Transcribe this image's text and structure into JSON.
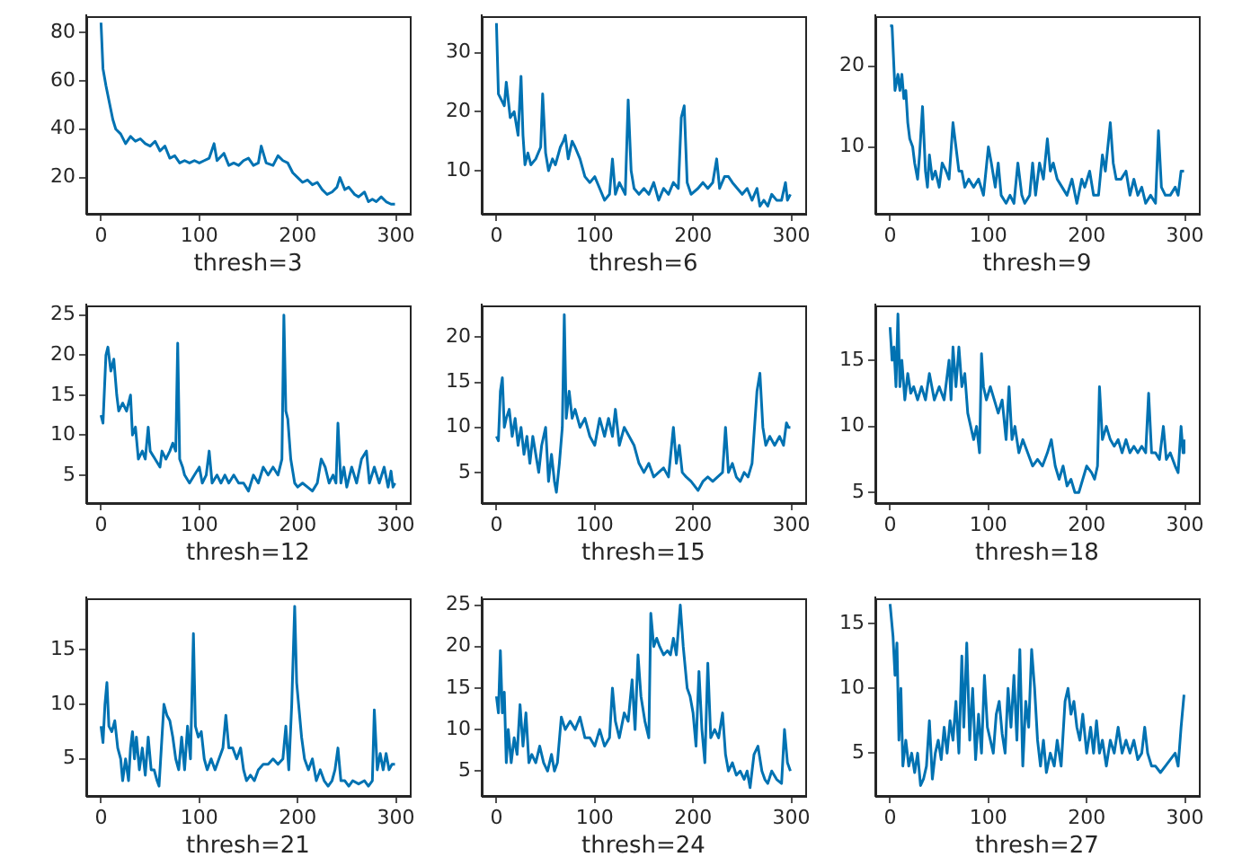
{
  "chart_data": [
    {
      "type": "line",
      "xlabel": "thresh=3",
      "color": "#0072b2",
      "xlim": [
        -15,
        314
      ],
      "xticks": [
        0,
        100,
        200,
        300
      ],
      "ylim": [
        5,
        87
      ],
      "yticks": [
        20,
        40,
        60,
        80
      ],
      "x": [
        0,
        2,
        5,
        8,
        12,
        15,
        20,
        25,
        30,
        35,
        40,
        45,
        50,
        55,
        60,
        65,
        70,
        75,
        80,
        85,
        90,
        95,
        100,
        105,
        110,
        115,
        118,
        125,
        130,
        135,
        140,
        145,
        150,
        155,
        160,
        163,
        168,
        175,
        180,
        185,
        190,
        195,
        200,
        205,
        210,
        215,
        220,
        225,
        230,
        235,
        240,
        243,
        248,
        252,
        258,
        262,
        268,
        272,
        276,
        280,
        285,
        290,
        295,
        299
      ],
      "values": [
        84,
        65,
        58,
        52,
        44,
        40,
        38,
        34,
        37,
        35,
        36,
        34,
        33,
        35,
        31,
        33,
        28,
        29,
        26,
        27,
        26,
        27,
        26,
        27,
        28,
        34,
        27,
        30,
        25,
        26,
        25,
        27,
        28,
        25,
        26,
        33,
        26,
        25,
        29,
        27,
        26,
        22,
        20,
        18,
        19,
        17,
        18,
        15,
        13,
        14,
        16,
        20,
        15,
        16,
        13,
        12,
        14,
        10,
        11,
        10,
        12,
        10,
        9,
        9
      ]
    },
    {
      "type": "line",
      "xlabel": "thresh=6",
      "color": "#0072b2",
      "xlim": [
        -15,
        314
      ],
      "xticks": [
        0,
        100,
        200,
        300
      ],
      "ylim": [
        2.7,
        36.3
      ],
      "yticks": [
        10,
        20,
        30
      ],
      "x": [
        0,
        2,
        5,
        8,
        10,
        12,
        14,
        18,
        22,
        25,
        27,
        29,
        32,
        35,
        40,
        45,
        47,
        50,
        53,
        57,
        60,
        65,
        68,
        70,
        73,
        77,
        80,
        85,
        90,
        95,
        100,
        105,
        110,
        115,
        118,
        121,
        125,
        128,
        131,
        134,
        137,
        140,
        145,
        150,
        155,
        160,
        165,
        170,
        175,
        180,
        185,
        188,
        191,
        194,
        198,
        205,
        210,
        215,
        220,
        224,
        227,
        232,
        236,
        240,
        245,
        250,
        255,
        260,
        265,
        268,
        272,
        276,
        280,
        285,
        290,
        294,
        296,
        299
      ],
      "values": [
        35,
        23,
        22,
        21,
        25,
        22,
        19,
        20,
        16,
        26,
        16,
        11,
        13,
        11,
        12,
        14,
        23,
        13,
        10,
        12,
        11,
        14,
        15,
        16,
        12,
        15,
        14,
        12,
        9,
        8,
        9,
        7,
        5,
        6,
        12,
        6,
        8,
        7,
        6,
        22,
        10,
        7,
        6,
        7,
        6,
        8,
        5,
        7,
        6,
        8,
        7,
        19,
        21,
        8,
        6,
        7,
        8,
        7,
        8,
        12,
        7,
        9,
        9,
        8,
        7,
        6,
        7,
        5,
        7,
        4,
        5,
        4,
        6,
        5,
        5,
        8,
        5,
        6
      ]
    },
    {
      "type": "line",
      "xlabel": "thresh=9",
      "color": "#0072b2",
      "xlim": [
        -15,
        314
      ],
      "xticks": [
        0,
        100,
        200,
        300
      ],
      "ylim": [
        1.7,
        26.3
      ],
      "yticks": [
        10,
        20
      ],
      "x": [
        0,
        2,
        5,
        8,
        10,
        12,
        14,
        16,
        18,
        20,
        23,
        25,
        28,
        30,
        33,
        36,
        38,
        40,
        43,
        46,
        50,
        53,
        57,
        60,
        64,
        67,
        70,
        73,
        76,
        80,
        85,
        90,
        95,
        100,
        103,
        107,
        110,
        113,
        118,
        122,
        126,
        130,
        134,
        137,
        142,
        145,
        148,
        152,
        156,
        160,
        163,
        166,
        170,
        175,
        180,
        185,
        190,
        195,
        198,
        203,
        207,
        212,
        216,
        219,
        224,
        227,
        230,
        235,
        240,
        244,
        248,
        252,
        256,
        260,
        265,
        270,
        273,
        276,
        280,
        285,
        290,
        293,
        296,
        299
      ],
      "values": [
        25,
        25,
        17,
        19,
        17,
        19,
        16,
        17,
        13,
        11,
        10,
        8,
        6,
        9,
        15,
        7,
        5,
        9,
        6,
        7,
        5,
        8,
        7,
        6,
        13,
        10,
        7,
        7,
        5,
        6,
        5,
        6,
        4,
        10,
        8,
        5,
        8,
        4,
        3,
        4,
        3,
        8,
        4,
        3,
        4,
        8,
        4,
        8,
        6,
        11,
        7,
        8,
        6,
        5,
        4,
        6,
        3,
        6,
        5,
        7,
        4,
        4,
        9,
        7,
        13,
        8,
        6,
        6,
        7,
        4,
        6,
        4,
        5,
        3,
        4,
        3,
        12,
        5,
        4,
        4,
        5,
        4,
        7,
        7
      ]
    },
    {
      "type": "line",
      "xlabel": "thresh=12",
      "color": "#0072b2",
      "xlim": [
        -15,
        314
      ],
      "xticks": [
        0,
        100,
        200,
        300
      ],
      "ylim": [
        1.5,
        26.3
      ],
      "yticks": [
        5,
        10,
        15,
        20,
        25
      ],
      "x": [
        0,
        2,
        5,
        7,
        10,
        13,
        16,
        18,
        22,
        26,
        30,
        32,
        35,
        38,
        42,
        45,
        48,
        50,
        55,
        60,
        62,
        66,
        70,
        73,
        76,
        78,
        80,
        83,
        85,
        90,
        95,
        100,
        103,
        107,
        110,
        113,
        118,
        122,
        126,
        130,
        135,
        140,
        145,
        150,
        155,
        160,
        165,
        170,
        175,
        180,
        184,
        186,
        188,
        190,
        193,
        197,
        200,
        205,
        210,
        215,
        220,
        224,
        228,
        232,
        236,
        239,
        241,
        244,
        247,
        250,
        255,
        260,
        265,
        270,
        273,
        278,
        283,
        288,
        292,
        295,
        297,
        299
      ],
      "values": [
        12.5,
        11.5,
        20,
        21,
        18,
        19.5,
        15,
        13,
        14,
        13,
        15,
        10,
        11,
        7,
        8,
        7,
        11,
        8,
        7,
        6,
        8,
        7,
        8,
        9,
        8,
        21.5,
        7,
        6,
        5,
        4,
        5,
        6,
        4,
        5,
        8,
        4,
        5,
        4,
        5,
        4,
        5,
        4,
        4,
        3,
        5,
        4,
        6,
        5,
        6,
        5,
        7,
        25,
        13,
        12,
        7,
        4,
        3.5,
        4,
        3.5,
        3,
        4,
        7,
        6,
        4,
        5,
        4,
        11.5,
        4,
        6,
        3.5,
        6,
        4,
        7,
        8,
        4,
        6,
        4,
        6,
        3.5,
        5.5,
        3.5,
        4
      ]
    },
    {
      "type": "line",
      "xlabel": "thresh=15",
      "color": "#0072b2",
      "xlim": [
        -15,
        314
      ],
      "xticks": [
        0,
        100,
        200,
        300
      ],
      "ylim": [
        1.6,
        23.6
      ],
      "yticks": [
        5,
        10,
        15,
        20
      ],
      "x": [
        0,
        2,
        4,
        6,
        8,
        10,
        13,
        16,
        19,
        22,
        25,
        28,
        31,
        34,
        37,
        40,
        43,
        46,
        50,
        53,
        56,
        59,
        61,
        64,
        67,
        69,
        71,
        74,
        77,
        80,
        85,
        90,
        95,
        100,
        105,
        110,
        114,
        118,
        121,
        125,
        130,
        135,
        140,
        145,
        150,
        155,
        160,
        165,
        170,
        175,
        180,
        183,
        186,
        189,
        193,
        198,
        205,
        210,
        215,
        220,
        225,
        230,
        233,
        236,
        240,
        244,
        248,
        252,
        256,
        260,
        265,
        268,
        271,
        274,
        278,
        283,
        288,
        292,
        295,
        297,
        299
      ],
      "values": [
        9,
        8.5,
        14,
        15.5,
        10,
        11,
        12,
        9,
        11,
        8,
        10,
        7,
        9,
        6,
        9,
        7,
        5,
        8,
        10,
        4,
        7,
        4,
        2.8,
        6,
        10,
        22.5,
        11,
        14,
        11,
        12,
        10,
        11,
        9,
        8,
        11,
        9,
        11,
        9,
        12,
        8,
        10,
        9,
        8,
        6,
        5,
        6,
        4.5,
        5,
        5.5,
        4.5,
        10,
        6,
        8,
        5,
        4.5,
        4,
        3,
        4,
        4.5,
        4,
        4.5,
        5,
        10,
        5,
        6,
        4.5,
        4,
        5,
        4.5,
        6,
        14,
        16,
        10,
        8,
        9,
        8,
        9,
        8,
        10.5,
        10,
        10
      ]
    },
    {
      "type": "line",
      "xlabel": "thresh=18",
      "color": "#0072b2",
      "xlim": [
        -15,
        314
      ],
      "xticks": [
        0,
        100,
        200,
        300
      ],
      "ylim": [
        4.2,
        19.2
      ],
      "yticks": [
        5,
        10,
        15
      ],
      "x": [
        0,
        2,
        4,
        6,
        8,
        10,
        12,
        15,
        18,
        21,
        24,
        28,
        32,
        36,
        40,
        45,
        50,
        55,
        60,
        62,
        64,
        67,
        70,
        73,
        76,
        79,
        82,
        85,
        88,
        91,
        93,
        95,
        98,
        102,
        106,
        110,
        114,
        118,
        121,
        124,
        127,
        131,
        135,
        140,
        145,
        150,
        155,
        160,
        164,
        168,
        172,
        176,
        180,
        184,
        188,
        192,
        196,
        200,
        205,
        208,
        211,
        213,
        216,
        220,
        224,
        228,
        232,
        236,
        240,
        244,
        248,
        252,
        256,
        260,
        263,
        266,
        270,
        274,
        278,
        281,
        285,
        290,
        293,
        296,
        298,
        299
      ],
      "values": [
        17.5,
        15,
        16,
        13,
        18.5,
        13,
        15,
        12,
        14,
        12.5,
        13,
        12,
        13,
        12,
        14,
        12,
        13,
        12,
        15,
        12,
        16,
        13,
        16,
        13,
        14,
        11,
        10,
        9,
        10,
        8,
        15.5,
        13,
        12,
        13,
        12,
        11,
        12,
        9,
        13,
        9,
        10,
        8,
        9,
        8,
        7,
        7.5,
        7,
        8,
        9,
        7,
        6,
        7,
        5.5,
        6,
        5,
        5,
        6,
        7,
        6.5,
        6,
        7,
        13,
        9,
        10,
        9,
        8.5,
        9,
        8,
        9,
        8,
        8.5,
        8,
        8.5,
        8,
        12.5,
        8,
        8,
        7.5,
        10,
        7.5,
        8,
        7,
        6.5,
        10,
        8,
        9
      ]
    },
    {
      "type": "line",
      "xlabel": "thresh=21",
      "color": "#0072b2",
      "xlim": [
        -15,
        314
      ],
      "xticks": [
        0,
        100,
        200,
        300
      ],
      "ylim": [
        1.6,
        19.8
      ],
      "yticks": [
        5,
        10,
        15
      ],
      "x": [
        0,
        2,
        4,
        6,
        8,
        11,
        14,
        17,
        20,
        22,
        25,
        28,
        30,
        32,
        34,
        36,
        39,
        42,
        45,
        48,
        51,
        54,
        57,
        59,
        62,
        64,
        67,
        70,
        73,
        76,
        79,
        82,
        85,
        88,
        91,
        94,
        96,
        99,
        102,
        105,
        108,
        112,
        116,
        120,
        124,
        127,
        130,
        134,
        138,
        142,
        145,
        148,
        152,
        156,
        160,
        165,
        170,
        175,
        180,
        185,
        188,
        191,
        194,
        197,
        199,
        201,
        204,
        207,
        211,
        215,
        219,
        223,
        227,
        231,
        235,
        238,
        241,
        244,
        248,
        252,
        256,
        262,
        268,
        272,
        276,
        278,
        281,
        284,
        287,
        290,
        293,
        296,
        299
      ],
      "values": [
        8,
        6.5,
        10,
        12,
        8,
        7.5,
        8.5,
        6,
        5,
        3,
        5,
        3,
        6,
        7.5,
        5,
        7,
        4,
        6,
        3.5,
        7,
        4,
        4,
        3,
        2.5,
        7,
        10,
        9,
        8.5,
        7,
        5,
        4,
        7,
        4,
        8,
        5,
        16.5,
        8,
        7,
        7.5,
        5,
        4,
        5,
        4,
        5,
        6,
        9,
        6,
        6,
        5,
        6,
        4,
        3,
        3.5,
        3,
        4,
        4.5,
        4.5,
        5,
        4.5,
        5,
        8,
        4,
        10,
        19,
        12,
        10,
        7,
        5,
        4,
        5,
        3,
        4,
        3,
        2.5,
        3,
        4,
        6,
        3,
        3,
        2.5,
        3,
        2.7,
        3,
        2.5,
        3,
        9.5,
        4,
        5.5,
        4,
        5.5,
        4,
        4.5,
        4.5
      ]
    },
    {
      "type": "line",
      "xlabel": "thresh=24",
      "color": "#0072b2",
      "xlim": [
        -15,
        314
      ],
      "xticks": [
        0,
        100,
        200,
        300
      ],
      "ylim": [
        2.0,
        25.9
      ],
      "yticks": [
        5,
        10,
        15,
        20,
        25
      ],
      "x": [
        0,
        2,
        4,
        6,
        8,
        10,
        12,
        15,
        18,
        21,
        24,
        27,
        30,
        33,
        36,
        40,
        44,
        48,
        52,
        56,
        59,
        62,
        66,
        70,
        75,
        80,
        85,
        90,
        95,
        100,
        105,
        110,
        115,
        118,
        121,
        125,
        130,
        134,
        138,
        141,
        144,
        147,
        151,
        155,
        157,
        160,
        163,
        166,
        170,
        174,
        177,
        180,
        183,
        187,
        190,
        194,
        197,
        200,
        203,
        206,
        209,
        212,
        215,
        218,
        222,
        226,
        230,
        233,
        236,
        240,
        244,
        248,
        252,
        255,
        258,
        262,
        266,
        270,
        273,
        276,
        280,
        285,
        290,
        293,
        296,
        299
      ],
      "values": [
        14,
        12,
        19.5,
        12,
        14.5,
        6,
        10,
        6,
        9,
        7,
        13,
        8,
        12,
        6,
        7,
        6,
        8,
        6,
        5,
        7,
        5,
        6,
        11.5,
        10,
        11,
        10,
        11.5,
        9,
        9,
        8,
        10,
        8,
        9,
        15,
        11,
        9,
        12,
        11,
        16,
        10,
        19,
        14,
        11,
        9,
        24,
        20,
        21,
        20,
        19,
        19.5,
        19,
        21,
        19,
        25,
        20,
        15,
        14,
        12,
        8,
        17,
        10,
        6,
        18,
        9,
        10,
        9,
        12,
        7,
        5,
        6,
        4.5,
        5,
        4,
        5,
        3,
        7,
        8,
        5,
        4,
        3.5,
        5,
        4,
        3.5,
        10,
        6,
        5
      ]
    },
    {
      "type": "line",
      "xlabel": "thresh=27",
      "color": "#0072b2",
      "xlim": [
        -15,
        314
      ],
      "xticks": [
        0,
        100,
        200,
        300
      ],
      "ylim": [
        1.7,
        17
      ],
      "yticks": [
        5,
        10,
        15
      ],
      "x": [
        0,
        3,
        5,
        7,
        9,
        11,
        13,
        16,
        19,
        22,
        25,
        28,
        31,
        34,
        37,
        40,
        43,
        46,
        49,
        52,
        55,
        58,
        61,
        64,
        67,
        70,
        73,
        75,
        78,
        81,
        84,
        87,
        90,
        93,
        96,
        99,
        102,
        105,
        108,
        111,
        114,
        117,
        120,
        123,
        126,
        129,
        132,
        135,
        138,
        141,
        144,
        147,
        150,
        153,
        156,
        159,
        163,
        167,
        170,
        174,
        178,
        181,
        184,
        187,
        190,
        193,
        196,
        200,
        204,
        207,
        210,
        213,
        216,
        220,
        224,
        228,
        232,
        236,
        240,
        244,
        248,
        252,
        256,
        259,
        262,
        266,
        270,
        275,
        280,
        285,
        290,
        293,
        296,
        299
      ],
      "values": [
        16.5,
        14,
        11,
        13.5,
        6,
        10,
        4,
        6,
        4,
        5,
        3.5,
        5,
        2.5,
        3,
        4,
        7.5,
        3,
        5,
        6,
        4.5,
        7,
        5,
        7.5,
        6,
        9,
        5,
        12.5,
        7,
        13.5,
        6,
        10,
        4.5,
        8,
        5,
        11,
        7,
        6,
        5,
        8,
        9,
        6.5,
        5,
        10,
        7,
        11,
        6,
        13,
        4,
        9,
        7,
        13,
        10,
        6,
        4,
        6,
        3.5,
        5,
        4,
        6,
        4,
        9,
        10,
        8,
        9,
        7,
        6,
        8,
        5,
        7,
        5,
        7.5,
        5,
        6,
        4,
        6,
        5,
        7,
        5,
        6,
        5,
        6,
        4.5,
        5,
        7,
        5,
        4,
        4,
        3.5,
        4,
        4.5,
        5,
        4,
        7,
        9.5
      ]
    }
  ]
}
